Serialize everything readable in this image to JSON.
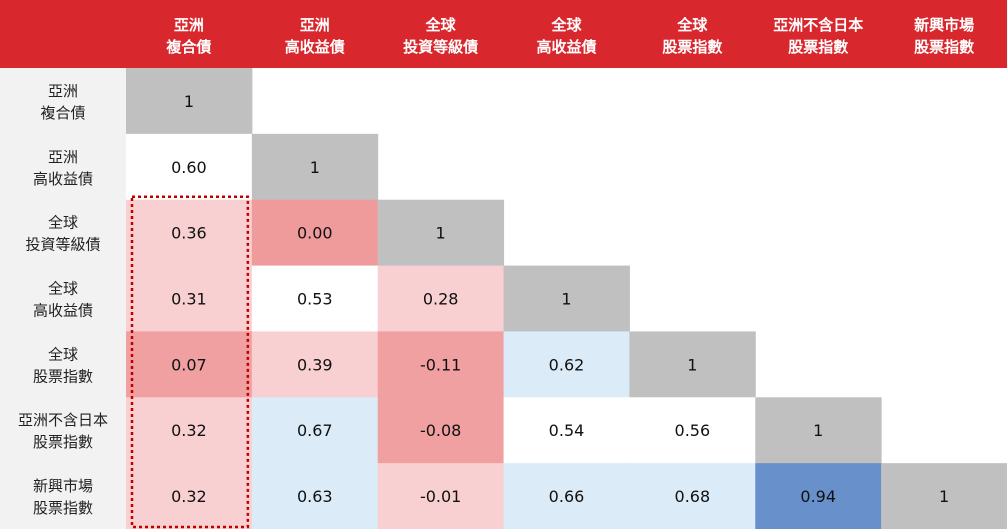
{
  "chart_data": {
    "type": "heatmap",
    "columns": [
      [
        "亞洲",
        "複合債"
      ],
      [
        "亞洲",
        "高收益債"
      ],
      [
        "全球",
        "投資等級債"
      ],
      [
        "全球",
        "高收益債"
      ],
      [
        "全球",
        "股票指數"
      ],
      [
        "亞洲不含日本",
        "股票指數"
      ],
      [
        "新興市場",
        "股票指數"
      ]
    ],
    "rows": [
      [
        "亞洲",
        "複合債"
      ],
      [
        "亞洲",
        "高收益債"
      ],
      [
        "全球",
        "投資等級債"
      ],
      [
        "全球",
        "高收益債"
      ],
      [
        "全球",
        "股票指數"
      ],
      [
        "亞洲不含日本",
        "股票指數"
      ],
      [
        "新興市場",
        "股票指數"
      ]
    ],
    "values": [
      [
        "1"
      ],
      [
        "0.60",
        "1"
      ],
      [
        "0.36",
        "0.00",
        "1"
      ],
      [
        "0.31",
        "0.53",
        "0.28",
        "1"
      ],
      [
        "0.07",
        "0.39",
        "-0.11",
        "0.62",
        "1"
      ],
      [
        "0.32",
        "0.67",
        "-0.08",
        "0.54",
        "0.56",
        "1"
      ],
      [
        "0.32",
        "0.63",
        "-0.01",
        "0.66",
        "0.68",
        "0.94",
        "1"
      ]
    ],
    "cell_colors": [
      [
        "#c0c0c0"
      ],
      [
        "#ffffff",
        "#c0c0c0"
      ],
      [
        "#f8d0d1",
        "#ef9b9b",
        "#c0c0c0"
      ],
      [
        "#f8d0d1",
        "#ffffff",
        "#f8d0d1",
        "#c0c0c0"
      ],
      [
        "#f0a0a0",
        "#f8d0d1",
        "#f0a0a0",
        "#dcebf8",
        "#c0c0c0"
      ],
      [
        "#f8d0d1",
        "#dcebf8",
        "#f0a0a0",
        "#ffffff",
        "#ffffff",
        "#c0c0c0"
      ],
      [
        "#f8d0d1",
        "#dcebf8",
        "#f8d0d1",
        "#dcebf8",
        "#dcebf8",
        "#6891cc",
        "#c0c0c0"
      ]
    ],
    "highlighted_column": 0,
    "colors": {
      "header_bg": "#d9272e",
      "row_label_bg": "#f2f2f2",
      "highlight_border": "#c00000"
    }
  }
}
